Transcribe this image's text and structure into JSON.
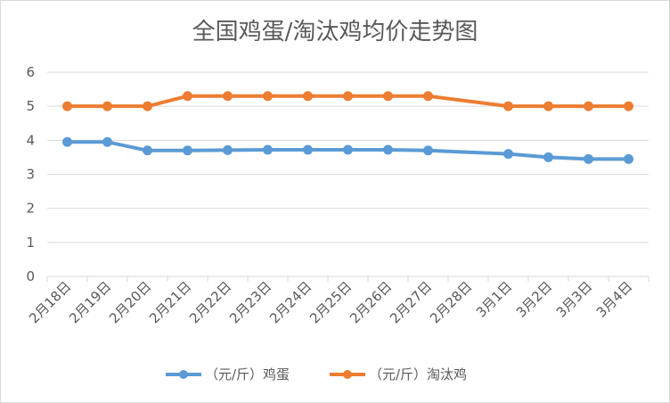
{
  "chart_data": {
    "type": "line",
    "title": "全国鸡蛋/淘汰鸡均价走势图",
    "categories": [
      "2月18日",
      "2月19日",
      "2月20日",
      "2月21日",
      "2月22日",
      "2月23日",
      "2月24日",
      "2月25日",
      "2月26日",
      "2月27日",
      "2月28日",
      "3月1日",
      "3月2日",
      "3月3日",
      "3月4日"
    ],
    "ylim": [
      0,
      6
    ],
    "yticks": [
      "0",
      "1",
      "2",
      "3",
      "4",
      "5",
      "6"
    ],
    "grid": true,
    "legend_position": "bottom",
    "series": [
      {
        "name": "（元/斤）鸡蛋",
        "color": "#5B9BD5",
        "values": [
          3.95,
          3.95,
          3.7,
          3.7,
          3.71,
          3.72,
          3.72,
          3.72,
          3.72,
          3.7,
          null,
          3.6,
          3.5,
          3.45,
          3.45
        ]
      },
      {
        "name": "（元/斤）淘汰鸡",
        "color": "#ED7D31",
        "values": [
          5.0,
          5.0,
          5.0,
          5.3,
          5.3,
          5.3,
          5.3,
          5.3,
          5.3,
          5.3,
          null,
          5.0,
          5.0,
          5.0,
          5.0
        ]
      }
    ]
  }
}
